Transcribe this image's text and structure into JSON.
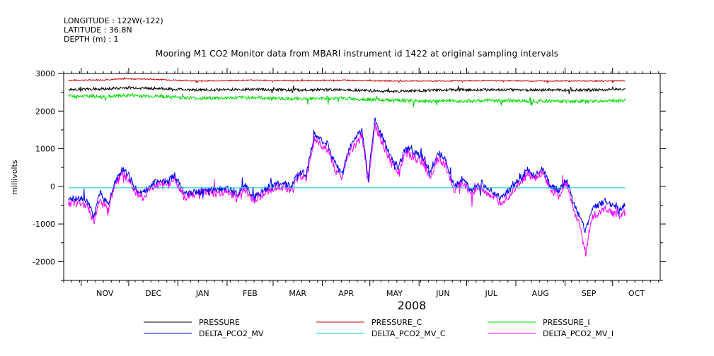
{
  "header": {
    "longitude": "LONGITUDE : 122W(-122)",
    "latitude": "LATITUDE : 36.8N",
    "depth": "DEPTH (m) : 1",
    "title": "Mooring M1 CO2 Monitor data from MBARI instrument id 1422 at original sampling intervals"
  },
  "chart_data": {
    "type": "line",
    "title": "Mooring M1 CO2 Monitor data from MBARI instrument id 1422 at original sampling intervals",
    "xlabel": "2008",
    "ylabel": "millivolts",
    "ylim": [
      -2500,
      3000
    ],
    "yticks": [
      3000,
      2000,
      1000,
      0,
      -1000,
      -2000
    ],
    "ytick_labels": [
      "3000",
      "2000",
      "1000",
      "0",
      "-1000",
      "-2000"
    ],
    "xlim": [
      "2007-10-21",
      "2008-10-31"
    ],
    "xtick_labels": [
      "NOV",
      "DEC",
      "JAN",
      "FEB",
      "MAR",
      "APR",
      "MAY",
      "JUN",
      "JUL",
      "AUG",
      "SEP",
      "OCT"
    ],
    "month_boundaries": [
      "2007-11-01",
      "2007-12-01",
      "2008-01-01",
      "2008-02-01",
      "2008-03-01",
      "2008-04-01",
      "2008-05-01",
      "2008-06-01",
      "2008-07-01",
      "2008-08-01",
      "2008-09-01",
      "2008-10-01"
    ],
    "grid": false,
    "legend_position": "bottom",
    "series": [
      {
        "name": "PRESSURE",
        "color": "#000000",
        "x": [
          "2007-10-24",
          "2007-11-15",
          "2007-12-01",
          "2007-12-20",
          "2008-01-15",
          "2008-02-15",
          "2008-03-15",
          "2008-04-15",
          "2008-05-15",
          "2008-06-15",
          "2008-07-15",
          "2008-08-15",
          "2008-09-15",
          "2008-10-09"
        ],
        "y": [
          2570,
          2590,
          2620,
          2600,
          2560,
          2580,
          2560,
          2570,
          2520,
          2560,
          2570,
          2560,
          2560,
          2580
        ]
      },
      {
        "name": "PRESSURE_C",
        "color": "#cc0000",
        "x": [
          "2007-10-24",
          "2007-11-15",
          "2007-12-01",
          "2007-12-20",
          "2008-01-15",
          "2008-02-15",
          "2008-03-15",
          "2008-04-15",
          "2008-05-15",
          "2008-06-15",
          "2008-07-15",
          "2008-08-15",
          "2008-09-15",
          "2008-10-09"
        ],
        "y": [
          2820,
          2830,
          2860,
          2840,
          2800,
          2820,
          2810,
          2820,
          2800,
          2800,
          2810,
          2800,
          2800,
          2800
        ]
      },
      {
        "name": "PRESSURE_I",
        "color": "#00dd00",
        "x": [
          "2007-10-24",
          "2007-11-15",
          "2007-12-01",
          "2007-12-20",
          "2008-01-15",
          "2008-02-15",
          "2008-03-15",
          "2008-04-15",
          "2008-05-15",
          "2008-06-15",
          "2008-07-15",
          "2008-08-15",
          "2008-09-15",
          "2008-10-09"
        ],
        "y": [
          2400,
          2380,
          2420,
          2390,
          2340,
          2360,
          2330,
          2340,
          2280,
          2260,
          2280,
          2270,
          2260,
          2280
        ]
      },
      {
        "name": "DELTA_PCO2_MV",
        "color": "#0000ee",
        "x": [
          "2007-10-24",
          "2007-11-01",
          "2007-11-05",
          "2007-11-09",
          "2007-11-13",
          "2007-11-18",
          "2007-11-22",
          "2007-11-27",
          "2007-12-01",
          "2007-12-05",
          "2007-12-10",
          "2007-12-15",
          "2007-12-20",
          "2007-12-25",
          "2007-12-30",
          "2008-01-05",
          "2008-01-10",
          "2008-01-15",
          "2008-01-20",
          "2008-01-25",
          "2008-02-01",
          "2008-02-07",
          "2008-02-12",
          "2008-02-18",
          "2008-02-24",
          "2008-03-01",
          "2008-03-06",
          "2008-03-12",
          "2008-03-18",
          "2008-03-22",
          "2008-03-27",
          "2008-04-01",
          "2008-04-05",
          "2008-04-09",
          "2008-04-13",
          "2008-04-18",
          "2008-04-22",
          "2008-04-26",
          "2008-04-30",
          "2008-05-04",
          "2008-05-09",
          "2008-05-14",
          "2008-05-19",
          "2008-05-24",
          "2008-05-29",
          "2008-06-03",
          "2008-06-08",
          "2008-06-13",
          "2008-06-18",
          "2008-06-23",
          "2008-06-28",
          "2008-07-04",
          "2008-07-10",
          "2008-07-16",
          "2008-07-22",
          "2008-07-28",
          "2008-08-03",
          "2008-08-08",
          "2008-08-13",
          "2008-08-18",
          "2008-08-23",
          "2008-08-28",
          "2008-09-02",
          "2008-09-06",
          "2008-09-10",
          "2008-09-14",
          "2008-09-18",
          "2008-09-22",
          "2008-09-26",
          "2008-10-01",
          "2008-10-05",
          "2008-10-09"
        ],
        "y": [
          -350,
          -330,
          -400,
          -800,
          -150,
          -500,
          100,
          450,
          300,
          -50,
          -200,
          50,
          150,
          100,
          300,
          -200,
          -150,
          -150,
          -50,
          -100,
          -50,
          -200,
          50,
          -300,
          -100,
          50,
          100,
          0,
          400,
          300,
          1400,
          1200,
          1100,
          600,
          350,
          1000,
          1300,
          1500,
          200,
          1800,
          1300,
          800,
          500,
          1100,
          900,
          800,
          400,
          900,
          700,
          0,
          200,
          -100,
          100,
          -100,
          -300,
          -100,
          200,
          400,
          300,
          500,
          0,
          -100,
          200,
          -400,
          -800,
          -1200,
          -600,
          -500,
          -400,
          -500,
          -600,
          -500
        ]
      },
      {
        "name": "DELTA_PCO2_MV_C",
        "color": "#00cccc",
        "x": [
          "2007-10-24",
          "2008-10-09"
        ],
        "y": [
          -40,
          -40
        ]
      },
      {
        "name": "DELTA_PCO2_MV_I",
        "color": "#ff00ff",
        "x": [
          "2007-10-24",
          "2007-11-01",
          "2007-11-05",
          "2007-11-09",
          "2007-11-13",
          "2007-11-18",
          "2007-11-22",
          "2007-11-27",
          "2007-12-01",
          "2007-12-05",
          "2007-12-10",
          "2007-12-15",
          "2007-12-20",
          "2007-12-25",
          "2007-12-30",
          "2008-01-05",
          "2008-01-10",
          "2008-01-15",
          "2008-01-20",
          "2008-01-25",
          "2008-02-01",
          "2008-02-07",
          "2008-02-12",
          "2008-02-18",
          "2008-02-24",
          "2008-03-01",
          "2008-03-06",
          "2008-03-12",
          "2008-03-18",
          "2008-03-22",
          "2008-03-27",
          "2008-04-01",
          "2008-04-05",
          "2008-04-09",
          "2008-04-13",
          "2008-04-18",
          "2008-04-22",
          "2008-04-26",
          "2008-04-30",
          "2008-05-04",
          "2008-05-09",
          "2008-05-14",
          "2008-05-19",
          "2008-05-24",
          "2008-05-29",
          "2008-06-03",
          "2008-06-08",
          "2008-06-13",
          "2008-06-18",
          "2008-06-23",
          "2008-06-28",
          "2008-07-04",
          "2008-07-10",
          "2008-07-16",
          "2008-07-22",
          "2008-07-28",
          "2008-08-03",
          "2008-08-08",
          "2008-08-13",
          "2008-08-18",
          "2008-08-23",
          "2008-08-28",
          "2008-09-02",
          "2008-09-06",
          "2008-09-10",
          "2008-09-14",
          "2008-09-18",
          "2008-09-22",
          "2008-09-26",
          "2008-10-01",
          "2008-10-05",
          "2008-10-09"
        ],
        "y": [
          -450,
          -430,
          -500,
          -950,
          -300,
          -650,
          0,
          350,
          200,
          -150,
          -300,
          -50,
          50,
          0,
          200,
          -300,
          -250,
          -250,
          -150,
          -200,
          -150,
          -300,
          -50,
          -400,
          -200,
          -50,
          0,
          -100,
          300,
          200,
          1250,
          1050,
          950,
          450,
          200,
          850,
          1150,
          1350,
          50,
          1650,
          1150,
          650,
          350,
          950,
          750,
          650,
          250,
          750,
          550,
          -100,
          100,
          -200,
          0,
          -250,
          -450,
          -250,
          100,
          300,
          200,
          400,
          -100,
          -250,
          100,
          -550,
          -1000,
          -1800,
          -800,
          -700,
          -600,
          -700,
          -800,
          -700
        ]
      }
    ]
  }
}
